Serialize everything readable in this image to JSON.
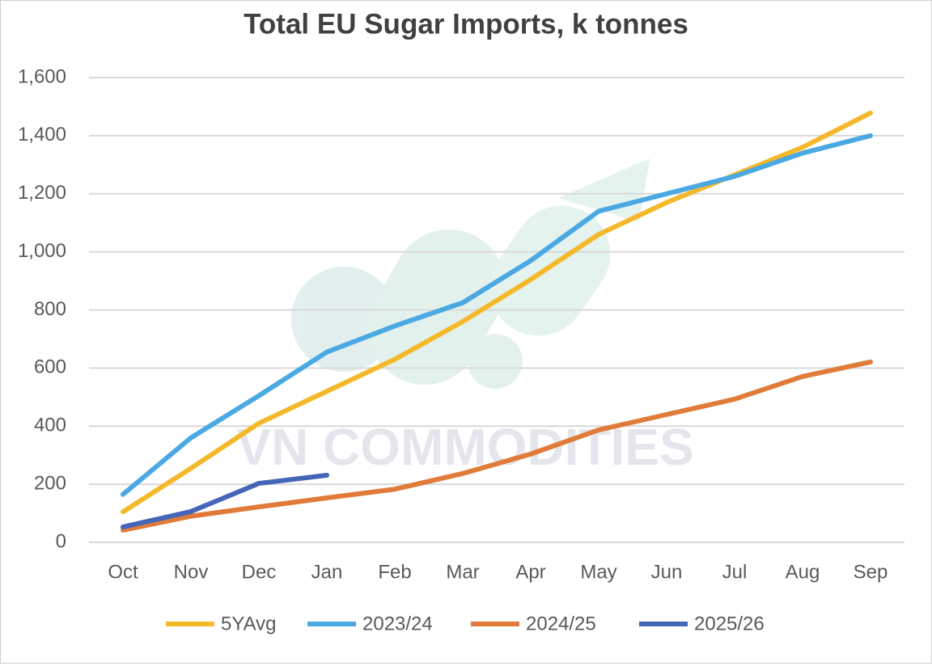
{
  "chart_data": {
    "type": "line",
    "title": "Total EU Sugar Imports, k tonnes",
    "watermark": "VN COMMODITIES",
    "categories": [
      "Oct",
      "Nov",
      "Dec",
      "Jan",
      "Feb",
      "Mar",
      "Apr",
      "May",
      "Jun",
      "Jul",
      "Aug",
      "Sep"
    ],
    "series": [
      {
        "name": "5YAvg",
        "color": "#f4b92a",
        "values": [
          105,
          255,
          410,
          520,
          630,
          760,
          905,
          1060,
          1170,
          1265,
          1360,
          1478
        ]
      },
      {
        "name": "2023/24",
        "color": "#4aa8e2",
        "values": [
          165,
          360,
          505,
          655,
          745,
          825,
          970,
          1140,
          1200,
          1260,
          1340,
          1400
        ]
      },
      {
        "name": "2024/25",
        "color": "#e07b39",
        "values": [
          42,
          90,
          122,
          153,
          183,
          237,
          304,
          387,
          440,
          493,
          571,
          621
        ]
      },
      {
        "name": "2025/26",
        "color": "#4566b8",
        "values": [
          53,
          106,
          203,
          231,
          null,
          null,
          null,
          null,
          null,
          null,
          null,
          null
        ]
      }
    ],
    "ylim": [
      0,
      1600
    ],
    "yticks": [
      0,
      200,
      400,
      600,
      800,
      {
        "value": 1000,
        "label": "1,000"
      },
      {
        "value": 1200,
        "label": "1,200"
      },
      {
        "value": 1400,
        "label": "1,400"
      },
      {
        "value": 1600,
        "label": "1,600"
      }
    ],
    "grid": true,
    "legend": "bottom"
  }
}
